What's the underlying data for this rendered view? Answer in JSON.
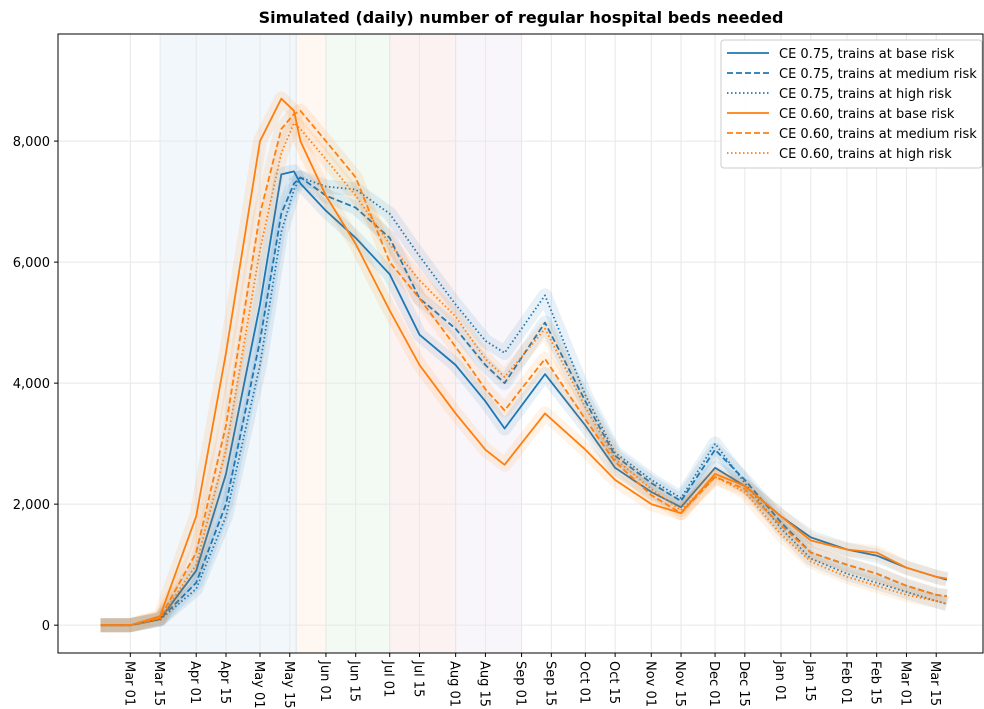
{
  "chart_data": {
    "type": "line",
    "title": "Simulated (daily) number of regular hospital beds needed",
    "x": [
      -14,
      0,
      14,
      31,
      45,
      61,
      71,
      77,
      80,
      92,
      106,
      122,
      136,
      153,
      167,
      176,
      195,
      214,
      228,
      245,
      259,
      275,
      289,
      306,
      320,
      337,
      351,
      365,
      379,
      384
    ],
    "xlim": [
      -34,
      401
    ],
    "xticks": [
      {
        "value": 0,
        "label": "Mar 01"
      },
      {
        "value": 14,
        "label": "Mar 15"
      },
      {
        "value": 31,
        "label": "Apr 01"
      },
      {
        "value": 45,
        "label": "Apr 15"
      },
      {
        "value": 61,
        "label": "May 01"
      },
      {
        "value": 75,
        "label": "May 15"
      },
      {
        "value": 92,
        "label": "Jun 01"
      },
      {
        "value": 106,
        "label": "Jun 15"
      },
      {
        "value": 122,
        "label": "Jul 01"
      },
      {
        "value": 136,
        "label": "Jul 15"
      },
      {
        "value": 153,
        "label": "Aug 01"
      },
      {
        "value": 167,
        "label": "Aug 15"
      },
      {
        "value": 184,
        "label": "Sep 01"
      },
      {
        "value": 198,
        "label": "Sep 15"
      },
      {
        "value": 214,
        "label": "Oct 01"
      },
      {
        "value": 228,
        "label": "Oct 15"
      },
      {
        "value": 245,
        "label": "Nov 01"
      },
      {
        "value": 259,
        "label": "Nov 15"
      },
      {
        "value": 275,
        "label": "Dec 01"
      },
      {
        "value": 289,
        "label": "Dec 15"
      },
      {
        "value": 306,
        "label": "Jan 01"
      },
      {
        "value": 320,
        "label": "Jan 15"
      },
      {
        "value": 337,
        "label": "Feb 01"
      },
      {
        "value": 351,
        "label": "Feb 15"
      },
      {
        "value": 365,
        "label": "Mar 01"
      },
      {
        "value": 379,
        "label": "Mar 15"
      }
    ],
    "ylim": [
      -460,
      9770
    ],
    "yticks": [
      0,
      {
        "value": 2000,
        "label": "2,000"
      },
      {
        "value": 4000,
        "label": "4,000"
      },
      {
        "value": 6000,
        "label": "6,000"
      },
      {
        "value": 8000,
        "label": "8,000"
      }
    ],
    "grid": true,
    "legend": "upper right",
    "shaded_spans": [
      {
        "range": [
          14,
          78
        ],
        "color": "#1f77b4"
      },
      {
        "range": [
          78,
          92
        ],
        "color": "#ff7f0e"
      },
      {
        "range": [
          92,
          122
        ],
        "color": "#2ca02c"
      },
      {
        "range": [
          122,
          153
        ],
        "color": "#d62728"
      },
      {
        "range": [
          153,
          184
        ],
        "color": "#9467bd"
      }
    ],
    "series": [
      {
        "name": "CE 0.75, trains at base risk",
        "color": "#1f77b4",
        "style": "solid",
        "values": [
          0,
          0,
          100,
          900,
          2500,
          5300,
          7450,
          7500,
          7300,
          6850,
          6400,
          5800,
          4800,
          4300,
          3700,
          3250,
          4150,
          3300,
          2600,
          2200,
          1950,
          2600,
          2300,
          1800,
          1450,
          1250,
          1150,
          950,
          800,
          750
        ]
      },
      {
        "name": "CE 0.75, trains at medium risk",
        "color": "#1f77b4",
        "style": "dashed",
        "values": [
          0,
          0,
          100,
          700,
          2000,
          4700,
          6800,
          7300,
          7400,
          7100,
          6900,
          6400,
          5400,
          4900,
          4300,
          4000,
          5000,
          3700,
          2800,
          2350,
          2050,
          2900,
          2400,
          1700,
          1200,
          1000,
          850,
          650,
          500,
          480
        ]
      },
      {
        "name": "CE 0.75, trains at high risk",
        "color": "#1f77b4",
        "style": "dotted",
        "values": [
          0,
          0,
          90,
          600,
          1800,
          4300,
          6500,
          7200,
          7400,
          7250,
          7200,
          6800,
          6100,
          5300,
          4700,
          4500,
          5450,
          3800,
          2850,
          2400,
          2100,
          3000,
          2350,
          1600,
          1100,
          850,
          700,
          550,
          400,
          350
        ]
      },
      {
        "name": "CE 0.60, trains at base risk",
        "color": "#ff7f0e",
        "style": "solid",
        "values": [
          0,
          0,
          150,
          1800,
          4500,
          8000,
          8700,
          8500,
          8000,
          7100,
          6300,
          5200,
          4300,
          3500,
          2900,
          2650,
          3500,
          2900,
          2400,
          2000,
          1850,
          2500,
          2300,
          1800,
          1400,
          1250,
          1200,
          950,
          800,
          770
        ]
      },
      {
        "name": "CE 0.60, trains at medium risk",
        "color": "#ff7f0e",
        "style": "dashed",
        "values": [
          0,
          0,
          120,
          1200,
          3300,
          6800,
          8200,
          8450,
          8500,
          8000,
          7400,
          6000,
          5400,
          4600,
          3900,
          3550,
          4400,
          3400,
          2700,
          2150,
          1850,
          2450,
          2250,
          1650,
          1200,
          1000,
          850,
          650,
          500,
          480
        ]
      },
      {
        "name": "CE 0.60, trains at high risk",
        "color": "#ff7f0e",
        "style": "dotted",
        "values": [
          0,
          0,
          110,
          1000,
          2900,
          6200,
          7800,
          8300,
          8200,
          7700,
          7100,
          6300,
          5700,
          5100,
          4400,
          4100,
          4900,
          3600,
          2750,
          2250,
          1900,
          2450,
          2200,
          1500,
          1050,
          800,
          650,
          500,
          400,
          350
        ]
      }
    ]
  }
}
